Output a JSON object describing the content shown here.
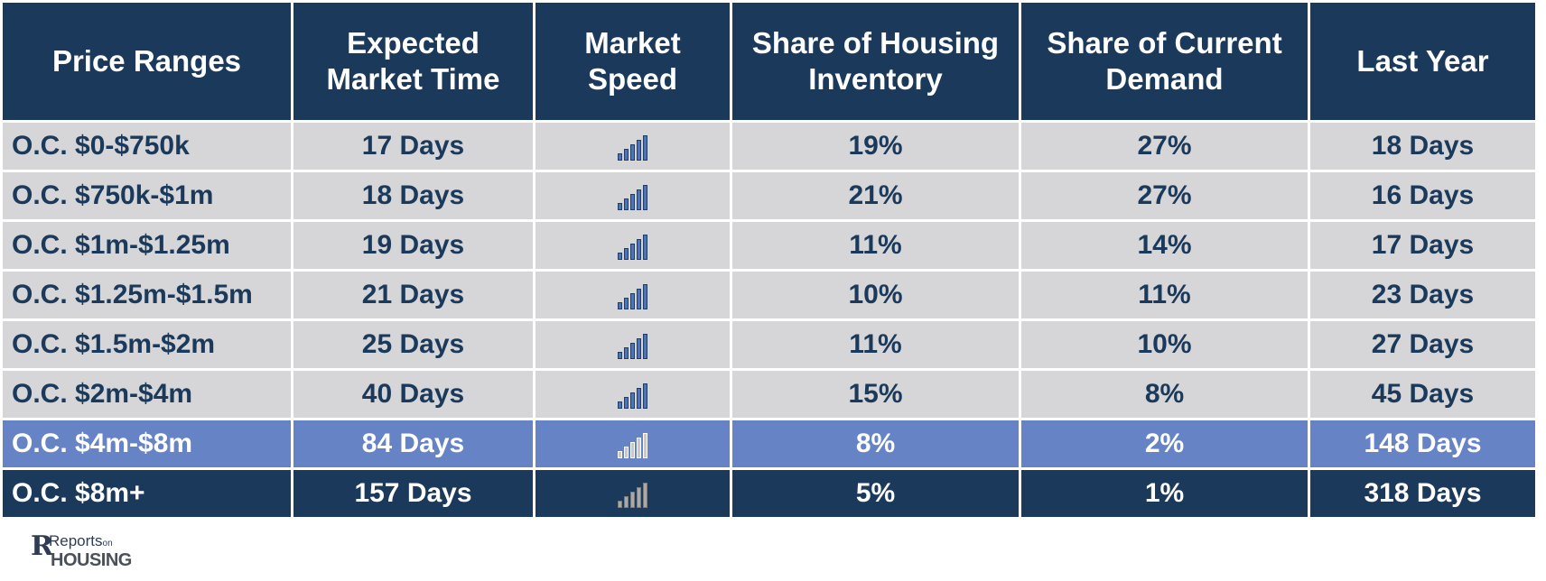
{
  "headers": [
    "Price Ranges",
    "Expected Market Time",
    "Market Speed",
    "Share of Housing Inventory",
    "Share of Current Demand",
    "Last Year"
  ],
  "rows": [
    {
      "range": "O.C. $0-$750k",
      "market_time": "17 Days",
      "speed_icon": "signal-bars-icon",
      "inventory": "19%",
      "demand": "27%",
      "last_year": "18 Days"
    },
    {
      "range": "O.C. $750k-$1m",
      "market_time": "18 Days",
      "speed_icon": "signal-bars-icon",
      "inventory": "21%",
      "demand": "27%",
      "last_year": "16 Days"
    },
    {
      "range": "O.C. $1m-$1.25m",
      "market_time": "19 Days",
      "speed_icon": "signal-bars-icon",
      "inventory": "11%",
      "demand": "14%",
      "last_year": "17 Days"
    },
    {
      "range": "O.C. $1.25m-$1.5m",
      "market_time": "21 Days",
      "speed_icon": "signal-bars-icon",
      "inventory": "10%",
      "demand": "11%",
      "last_year": "23 Days"
    },
    {
      "range": "O.C. $1.5m-$2m",
      "market_time": "25 Days",
      "speed_icon": "signal-bars-icon",
      "inventory": "11%",
      "demand": "10%",
      "last_year": "27 Days"
    },
    {
      "range": "O.C. $2m-$4m",
      "market_time": "40 Days",
      "speed_icon": "signal-bars-icon",
      "inventory": "15%",
      "demand": "8%",
      "last_year": "45 Days"
    },
    {
      "range": "O.C. $4m-$8m",
      "market_time": "84 Days",
      "speed_icon": "signal-bars-icon",
      "inventory": "8%",
      "demand": "2%",
      "last_year": "148 Days"
    },
    {
      "range": "O.C. $8m+",
      "market_time": "157 Days",
      "speed_icon": "signal-bars-icon",
      "inventory": "5%",
      "demand": "1%",
      "last_year": "318 Days"
    }
  ],
  "logo": {
    "text_top": "Reports",
    "text_on": "on",
    "text_bottom": "HOUSING"
  },
  "colors": {
    "header_bg": "#1b3a5b",
    "row_bg": "#d6d6d8",
    "highlight_bg": "#6683c5",
    "text_dark": "#1b3a5b"
  }
}
